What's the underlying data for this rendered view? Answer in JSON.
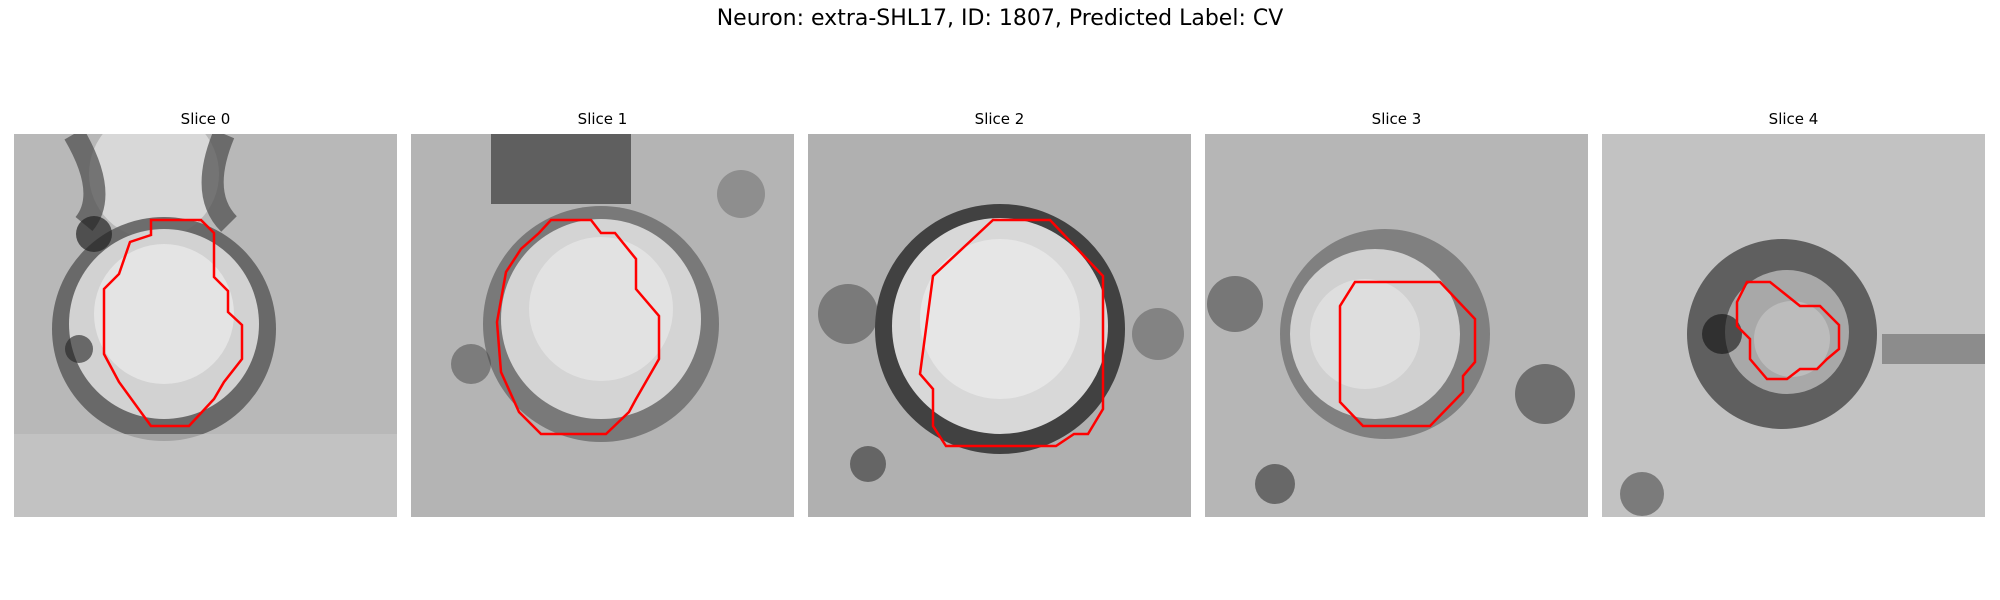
{
  "figure": {
    "title": "Neuron: extra-SHL17, ID: 1807, Predicted Label: CV"
  },
  "panels": [
    {
      "title": "Slice 0"
    },
    {
      "title": "Slice 1"
    },
    {
      "title": "Slice 2"
    },
    {
      "title": "Slice 3"
    },
    {
      "title": "Slice 4"
    }
  ],
  "colors": {
    "contour": "#ff0000",
    "dark_tone": "#1a1a1a",
    "light_tone": "#eeeeee"
  }
}
